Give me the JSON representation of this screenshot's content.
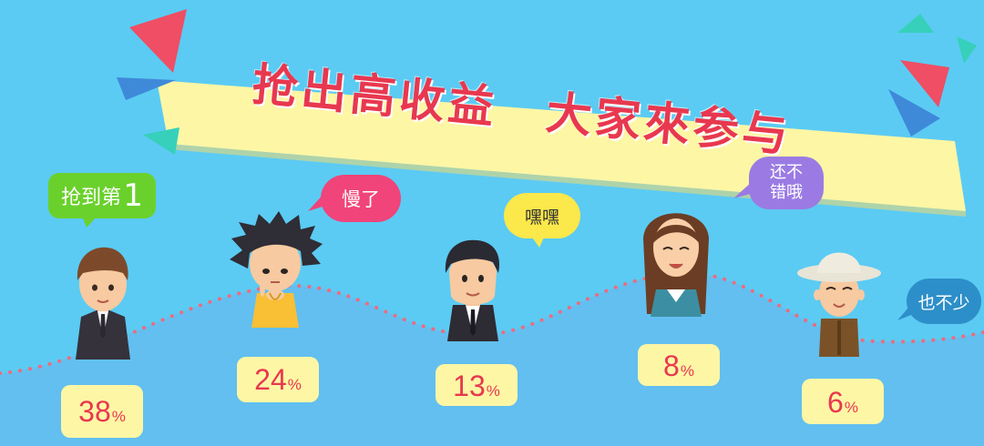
{
  "banner": {
    "title": "抢出高收益　大家來参与",
    "color": "#e8384f",
    "paper_color": "#fdf6a5"
  },
  "colors": {
    "sky": "#5bcbf3",
    "ground": "#5fbde9",
    "dots": "#ee6b7e",
    "card": "#fdf6a5"
  },
  "characters": [
    {
      "name": "man-1",
      "bubble": "抢到第",
      "bubble_rank": "1",
      "bubble_color": "#6ad12c",
      "percent": "38",
      "unit": "%"
    },
    {
      "name": "woman-1",
      "bubble": "慢了",
      "bubble_color": "#f0447a",
      "percent": "24",
      "unit": "%"
    },
    {
      "name": "man-2",
      "bubble": "嘿嘿",
      "bubble_color": "#fbe84b",
      "percent": "13",
      "unit": "%"
    },
    {
      "name": "woman-2",
      "bubble_line1": "还不",
      "bubble_line2": "错哦",
      "bubble_color": "#9b7be3",
      "percent": "8",
      "unit": "%"
    },
    {
      "name": "old-man",
      "bubble": "也不少",
      "bubble_color": "#2d8fc9",
      "percent": "6",
      "unit": "%"
    }
  ]
}
